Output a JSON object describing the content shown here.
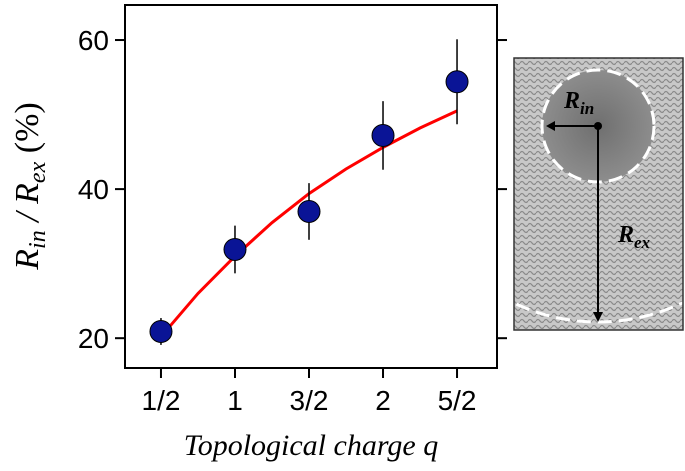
{
  "chart_data": {
    "type": "scatter",
    "x_label": "Topological charge q",
    "y_label": [
      "R",
      "in",
      " / R",
      "ex",
      " (%)"
    ],
    "xlim": [
      0.257,
      2.77
    ],
    "ylim": [
      16,
      64.7
    ],
    "xticks": [
      {
        "value": 0.5,
        "label": "1/2"
      },
      1,
      {
        "value": 1.5,
        "label": "3/2"
      },
      2,
      {
        "value": 2.5,
        "label": "5/2"
      }
    ],
    "yticks": [
      20,
      40,
      60
    ],
    "points": {
      "x": [
        0.5,
        1,
        1.5,
        2,
        2.5
      ],
      "values": [
        20.9,
        31.9,
        37.0,
        47.2,
        54.4
      ],
      "errors": [
        1.8,
        3.2,
        3.8,
        4.6,
        5.7
      ],
      "color": "#0a1496"
    },
    "fit": {
      "x": [
        0.5,
        0.75,
        1,
        1.25,
        1.5,
        1.75,
        2,
        2.25,
        2.5
      ],
      "values": [
        20.2,
        26,
        31,
        35.5,
        39.4,
        42.7,
        45.6,
        48.2,
        50.5
      ],
      "color": "#ff0000"
    },
    "inset": {
      "labels": [
        [
          "R",
          "in"
        ],
        [
          "R",
          "ex"
        ]
      ]
    }
  }
}
